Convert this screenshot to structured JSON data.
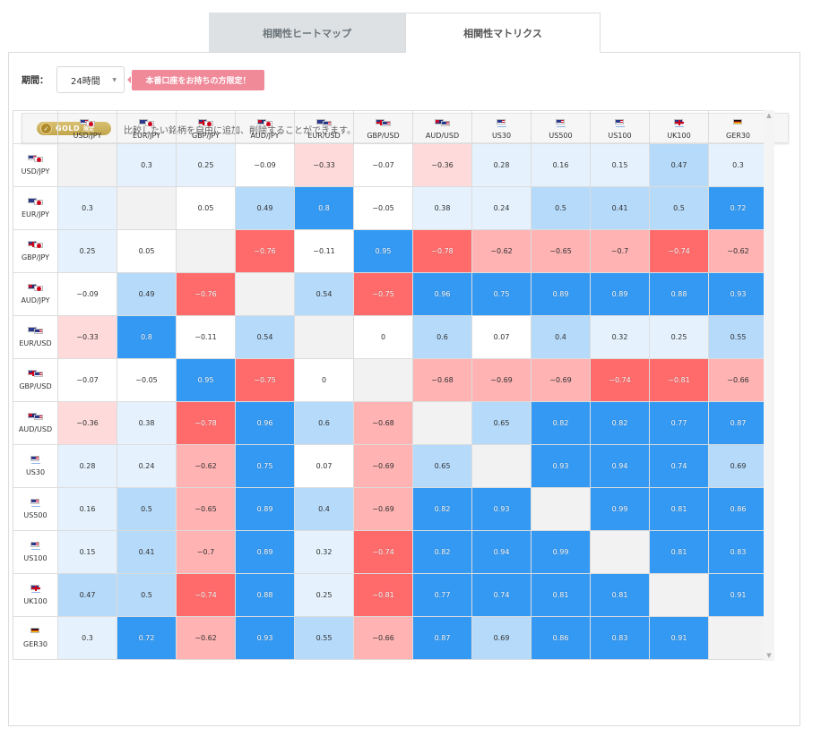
{
  "tabs": [
    {
      "label": "相関性ヒートマップ",
      "active": false
    },
    {
      "label": "相関性マトリクス",
      "active": true
    }
  ],
  "period": {
    "label": "期間：",
    "value": "24時間"
  },
  "live_badge": "本番口座をお持ちの方限定！",
  "gold": {
    "badge_text": "GOLD",
    "badge_sub": "限定",
    "message": "比較したい銘柄を自由に追加、削除することができます。"
  },
  "colors": {
    "strong_positive": "#3399f3",
    "mid_positive": "#b5dafa",
    "weak_positive": "#e5f2fd",
    "neutral": "#ffffff",
    "weak_negative": "#ffdada",
    "mid_negative": "#ffb3b3",
    "strong_negative": "#ff6b6b",
    "diagonal": "#f2f2f2"
  },
  "symbols": [
    {
      "label": "USD/JPY",
      "flags": [
        "us",
        "jp"
      ]
    },
    {
      "label": "EUR/JPY",
      "flags": [
        "eu",
        "jp"
      ]
    },
    {
      "label": "GBP/JPY",
      "flags": [
        "gb",
        "jp"
      ]
    },
    {
      "label": "AUD/JPY",
      "flags": [
        "au",
        "jp"
      ]
    },
    {
      "label": "EUR/USD",
      "flags": [
        "eu",
        "us"
      ]
    },
    {
      "label": "GBP/USD",
      "flags": [
        "gb",
        "us"
      ]
    },
    {
      "label": "AUD/USD",
      "flags": [
        "au",
        "us"
      ]
    },
    {
      "label": "US30",
      "flags": [
        "us"
      ]
    },
    {
      "label": "US500",
      "flags": [
        "us"
      ]
    },
    {
      "label": "US100",
      "flags": [
        "us"
      ]
    },
    {
      "label": "UK100",
      "flags": [
        "gb"
      ]
    },
    {
      "label": "GER30",
      "flags": [
        "de"
      ]
    }
  ],
  "matrix": [
    [
      null,
      0.3,
      0.25,
      -0.09,
      -0.33,
      -0.07,
      -0.36,
      0.28,
      0.16,
      0.15,
      0.47,
      0.3
    ],
    [
      0.3,
      null,
      0.05,
      0.49,
      0.8,
      -0.05,
      0.38,
      0.24,
      0.5,
      0.41,
      0.5,
      0.72
    ],
    [
      0.25,
      0.05,
      null,
      -0.76,
      -0.11,
      0.95,
      -0.78,
      -0.62,
      -0.65,
      -0.7,
      -0.74,
      -0.62
    ],
    [
      -0.09,
      0.49,
      -0.76,
      null,
      0.54,
      -0.75,
      0.96,
      0.75,
      0.89,
      0.89,
      0.88,
      0.93
    ],
    [
      -0.33,
      0.8,
      -0.11,
      0.54,
      null,
      0,
      0.6,
      0.07,
      0.4,
      0.32,
      0.25,
      0.55
    ],
    [
      -0.07,
      -0.05,
      0.95,
      -0.75,
      0,
      null,
      -0.68,
      -0.69,
      -0.69,
      -0.74,
      -0.81,
      -0.66
    ],
    [
      -0.36,
      0.38,
      -0.78,
      0.96,
      0.6,
      -0.68,
      null,
      0.65,
      0.82,
      0.82,
      0.77,
      0.87
    ],
    [
      0.28,
      0.24,
      -0.62,
      0.75,
      0.07,
      -0.69,
      0.65,
      null,
      0.93,
      0.94,
      0.74,
      0.69
    ],
    [
      0.16,
      0.5,
      -0.65,
      0.89,
      0.4,
      -0.69,
      0.82,
      0.93,
      null,
      0.99,
      0.81,
      0.86
    ],
    [
      0.15,
      0.41,
      -0.7,
      0.89,
      0.32,
      -0.74,
      0.82,
      0.94,
      0.99,
      null,
      0.81,
      0.83
    ],
    [
      0.47,
      0.5,
      -0.74,
      0.88,
      0.25,
      -0.81,
      0.77,
      0.74,
      0.81,
      0.81,
      null,
      0.91
    ],
    [
      0.3,
      0.72,
      -0.62,
      0.93,
      0.55,
      -0.66,
      0.87,
      0.69,
      0.86,
      0.83,
      0.91,
      null
    ]
  ]
}
